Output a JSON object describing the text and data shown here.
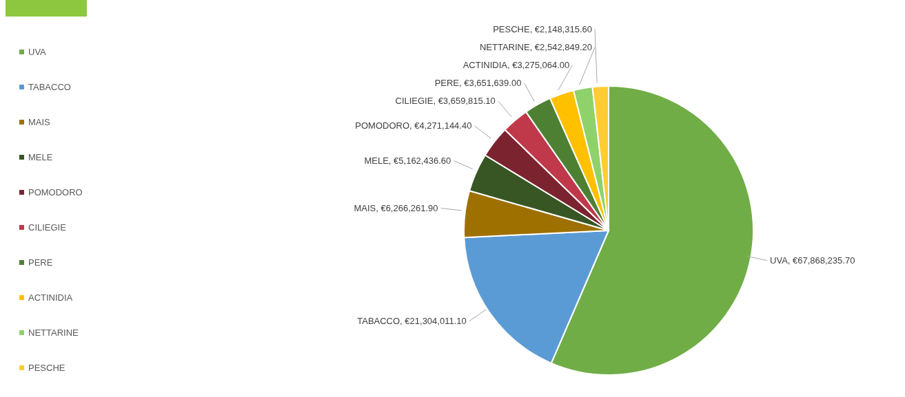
{
  "chart_data": {
    "type": "pie",
    "categories": [
      "UVA",
      "TABACCO",
      "MAIS",
      "MELE",
      "POMODORO",
      "CILIEGIE",
      "PERE",
      "ACTINIDIA",
      "NETTARINE",
      "PESCHE"
    ],
    "values": [
      67868235.7,
      21304011.1,
      6266261.9,
      5162436.6,
      4271144.4,
      3659815.1,
      3651639.0,
      3275064.0,
      2542849.2,
      2148315.6
    ],
    "colors": [
      "#70ad47",
      "#5b9bd5",
      "#9e7000",
      "#375623",
      "#7b2430",
      "#c0394b",
      "#4e8034",
      "#ffc000",
      "#8fd16a",
      "#ffcc33"
    ],
    "value_labels": [
      "UVA, €67,868,235.70",
      "TABACCO, €21,304,011.10",
      "MAIS, €6,266,261.90",
      "MELE, €5,162,436.60",
      "POMODORO, €4,271,144.40",
      "CILIEGIE, €3,659,815.10",
      "PERE, €3,651,639.00",
      "ACTINIDIA, €3,275,064.00",
      "NETTARINE, €2,542,849.20",
      "PESCHE, €2,148,315.60"
    ],
    "legend": "left"
  }
}
